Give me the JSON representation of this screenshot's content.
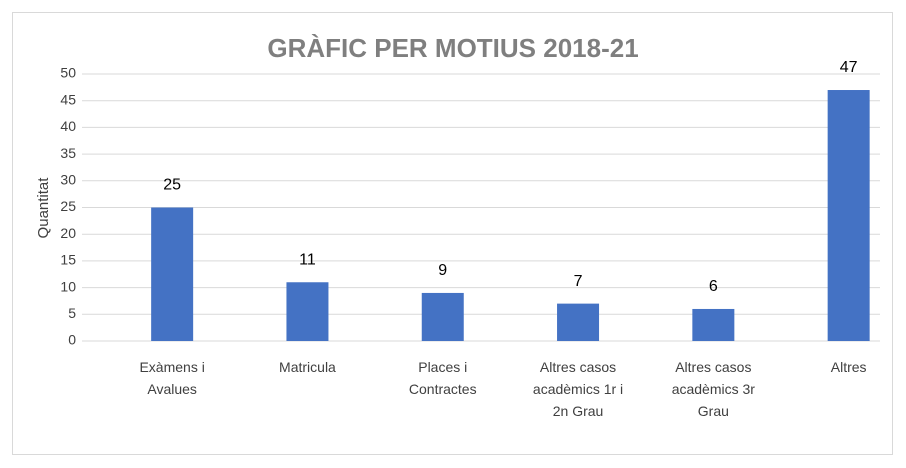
{
  "chart_data": {
    "type": "bar",
    "title": "GRÀFIC PER MOTIUS 2018-21",
    "y_label": "Quantitat",
    "categories": [
      "Exàmens i Avalues",
      "Matricula",
      "Places i Contractes",
      "Altres casos acadèmics 1r i 2n Grau",
      "Altres casos acadèmics 3r Grau",
      "Altres"
    ],
    "values": [
      25,
      11,
      9,
      7,
      6,
      47
    ],
    "color": "#4472c4",
    "ylim": [
      0,
      50
    ],
    "yticks": [
      0,
      5,
      10,
      15,
      20,
      25,
      30,
      35,
      40,
      45,
      50
    ],
    "grid": true
  }
}
